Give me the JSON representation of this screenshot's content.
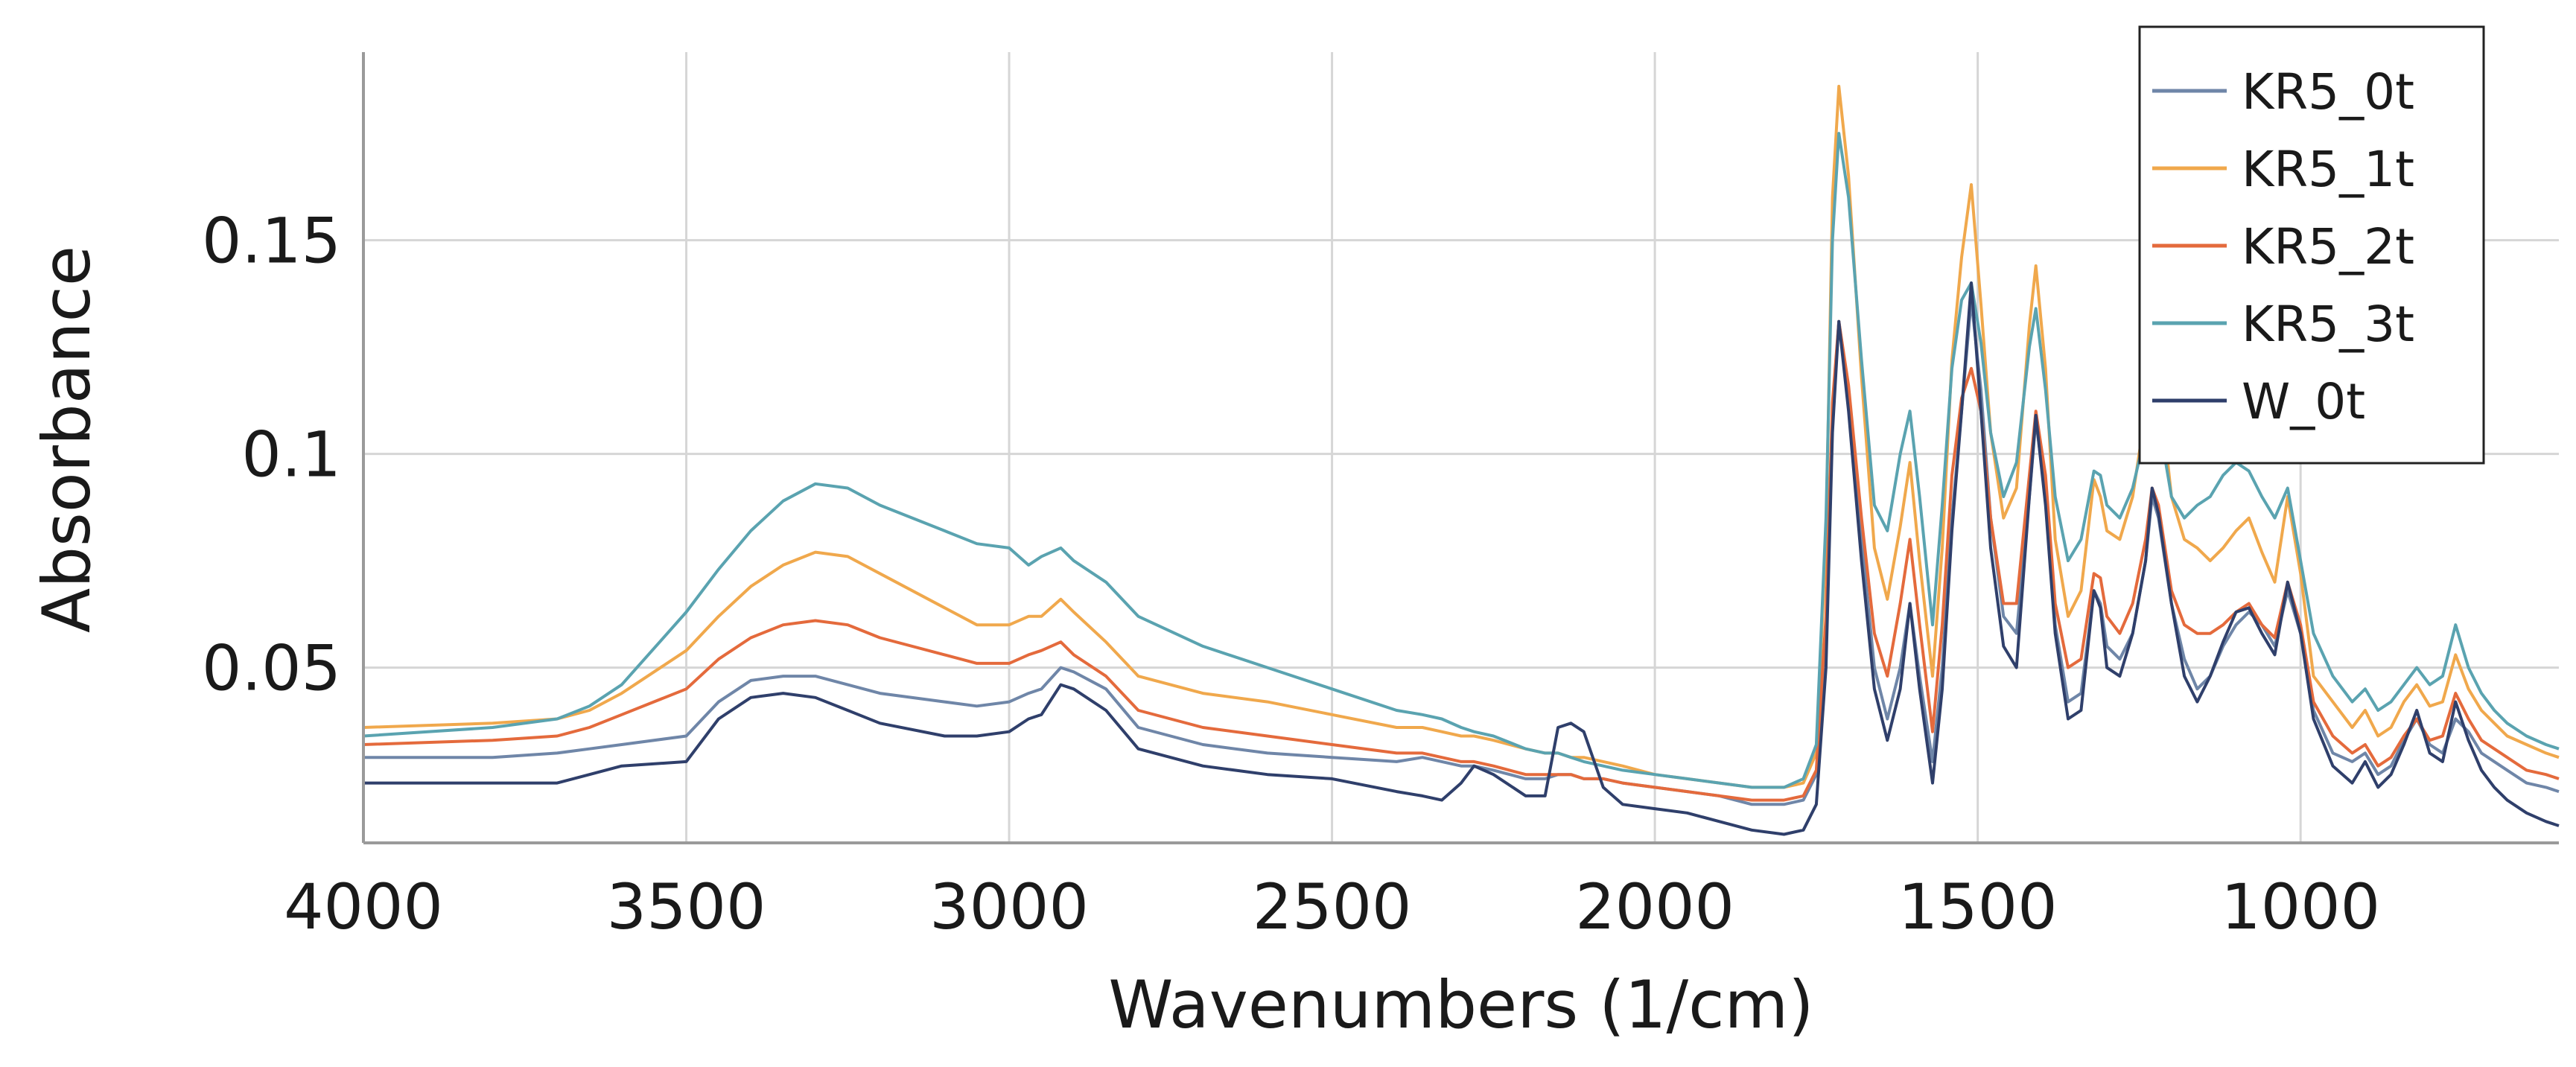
{
  "chart_data": {
    "type": "line",
    "xlabel": "Wavenumbers (1/cm)",
    "ylabel": "Absorbance",
    "xlim": [
      4000,
      600
    ],
    "ylim": [
      0.009,
      0.194
    ],
    "x_reversed": true,
    "grid": true,
    "legend_position": "top-right",
    "x_ticks": [
      {
        "value": 4000,
        "label": "4000"
      },
      {
        "value": 3500,
        "label": "3500"
      },
      {
        "value": 3000,
        "label": "3000"
      },
      {
        "value": 2500,
        "label": "2500"
      },
      {
        "value": 2000,
        "label": "2000"
      },
      {
        "value": 1500,
        "label": "1500"
      },
      {
        "value": 1000,
        "label": "1000"
      }
    ],
    "y_ticks": [
      {
        "value": 0.05,
        "label": "0.05"
      },
      {
        "value": 0.1,
        "label": "0.1"
      },
      {
        "value": 0.15,
        "label": "0.15"
      }
    ],
    "x": [
      4000,
      3800,
      3700,
      3650,
      3600,
      3500,
      3450,
      3400,
      3350,
      3300,
      3250,
      3200,
      3100,
      3050,
      3000,
      2970,
      2950,
      2920,
      2900,
      2850,
      2800,
      2700,
      2600,
      2500,
      2400,
      2360,
      2330,
      2300,
      2280,
      2250,
      2200,
      2170,
      2150,
      2130,
      2110,
      2080,
      2050,
      2000,
      1950,
      1900,
      1850,
      1800,
      1770,
      1750,
      1735,
      1725,
      1715,
      1700,
      1680,
      1660,
      1640,
      1620,
      1605,
      1590,
      1570,
      1555,
      1540,
      1525,
      1510,
      1495,
      1480,
      1460,
      1440,
      1420,
      1410,
      1395,
      1380,
      1360,
      1340,
      1320,
      1310,
      1300,
      1280,
      1260,
      1240,
      1230,
      1220,
      1200,
      1180,
      1160,
      1140,
      1120,
      1100,
      1080,
      1060,
      1040,
      1020,
      1000,
      980,
      950,
      920,
      900,
      880,
      860,
      840,
      820,
      800,
      780,
      760,
      740,
      720,
      700,
      680,
      650,
      620,
      600
    ],
    "series": [
      {
        "name": "KR5_0t",
        "color": "#6f86a8",
        "values": [
          0.029,
          0.029,
          0.03,
          0.031,
          0.032,
          0.034,
          0.042,
          0.047,
          0.048,
          0.048,
          0.046,
          0.044,
          0.042,
          0.041,
          0.042,
          0.044,
          0.045,
          0.05,
          0.049,
          0.045,
          0.036,
          0.032,
          0.03,
          0.029,
          0.028,
          0.029,
          0.028,
          0.027,
          0.027,
          0.026,
          0.024,
          0.024,
          0.025,
          0.025,
          0.024,
          0.024,
          0.023,
          0.022,
          0.021,
          0.02,
          0.018,
          0.018,
          0.019,
          0.025,
          0.06,
          0.11,
          0.131,
          0.115,
          0.08,
          0.05,
          0.038,
          0.05,
          0.065,
          0.048,
          0.028,
          0.05,
          0.085,
          0.11,
          0.136,
          0.115,
          0.085,
          0.062,
          0.058,
          0.09,
          0.108,
          0.09,
          0.06,
          0.042,
          0.044,
          0.068,
          0.065,
          0.055,
          0.052,
          0.058,
          0.075,
          0.09,
          0.085,
          0.065,
          0.052,
          0.045,
          0.048,
          0.055,
          0.06,
          0.063,
          0.06,
          0.055,
          0.068,
          0.058,
          0.04,
          0.03,
          0.028,
          0.03,
          0.025,
          0.027,
          0.033,
          0.038,
          0.032,
          0.03,
          0.038,
          0.035,
          0.03,
          0.028,
          0.026,
          0.023,
          0.022,
          0.021
        ]
      },
      {
        "name": "KR5_1t",
        "color": "#f0a84c",
        "values": [
          0.036,
          0.037,
          0.038,
          0.04,
          0.044,
          0.054,
          0.062,
          0.069,
          0.074,
          0.077,
          0.076,
          0.072,
          0.064,
          0.06,
          0.06,
          0.062,
          0.062,
          0.066,
          0.063,
          0.056,
          0.048,
          0.044,
          0.042,
          0.039,
          0.036,
          0.036,
          0.035,
          0.034,
          0.034,
          0.033,
          0.031,
          0.03,
          0.03,
          0.029,
          0.029,
          0.028,
          0.027,
          0.025,
          0.024,
          0.023,
          0.022,
          0.022,
          0.023,
          0.03,
          0.08,
          0.16,
          0.186,
          0.165,
          0.118,
          0.078,
          0.066,
          0.083,
          0.098,
          0.075,
          0.048,
          0.078,
          0.122,
          0.146,
          0.163,
          0.135,
          0.105,
          0.085,
          0.092,
          0.13,
          0.144,
          0.12,
          0.08,
          0.062,
          0.068,
          0.094,
          0.09,
          0.082,
          0.08,
          0.09,
          0.11,
          0.124,
          0.118,
          0.09,
          0.08,
          0.078,
          0.075,
          0.078,
          0.082,
          0.085,
          0.077,
          0.07,
          0.09,
          0.072,
          0.048,
          0.042,
          0.036,
          0.04,
          0.034,
          0.036,
          0.042,
          0.046,
          0.041,
          0.042,
          0.053,
          0.045,
          0.04,
          0.037,
          0.034,
          0.032,
          0.03,
          0.029
        ]
      },
      {
        "name": "KR5_2t",
        "color": "#e46a3c",
        "values": [
          0.032,
          0.033,
          0.034,
          0.036,
          0.039,
          0.045,
          0.052,
          0.057,
          0.06,
          0.061,
          0.06,
          0.057,
          0.053,
          0.051,
          0.051,
          0.053,
          0.054,
          0.056,
          0.053,
          0.048,
          0.04,
          0.036,
          0.034,
          0.032,
          0.03,
          0.03,
          0.029,
          0.028,
          0.028,
          0.027,
          0.025,
          0.025,
          0.025,
          0.025,
          0.024,
          0.024,
          0.023,
          0.022,
          0.021,
          0.02,
          0.019,
          0.019,
          0.02,
          0.026,
          0.062,
          0.112,
          0.131,
          0.116,
          0.085,
          0.058,
          0.048,
          0.065,
          0.08,
          0.06,
          0.035,
          0.06,
          0.095,
          0.113,
          0.12,
          0.11,
          0.085,
          0.065,
          0.065,
          0.095,
          0.11,
          0.095,
          0.065,
          0.05,
          0.052,
          0.072,
          0.071,
          0.062,
          0.058,
          0.065,
          0.08,
          0.092,
          0.088,
          0.068,
          0.06,
          0.058,
          0.058,
          0.06,
          0.063,
          0.065,
          0.06,
          0.057,
          0.07,
          0.06,
          0.042,
          0.034,
          0.03,
          0.032,
          0.027,
          0.029,
          0.034,
          0.038,
          0.033,
          0.034,
          0.044,
          0.038,
          0.033,
          0.031,
          0.029,
          0.026,
          0.025,
          0.024
        ]
      },
      {
        "name": "KR5_3t",
        "color": "#5aa3b0",
        "values": [
          0.034,
          0.036,
          0.038,
          0.041,
          0.046,
          0.063,
          0.073,
          0.082,
          0.089,
          0.093,
          0.092,
          0.088,
          0.082,
          0.079,
          0.078,
          0.074,
          0.076,
          0.078,
          0.075,
          0.07,
          0.062,
          0.055,
          0.05,
          0.045,
          0.04,
          0.039,
          0.038,
          0.036,
          0.035,
          0.034,
          0.031,
          0.03,
          0.03,
          0.029,
          0.028,
          0.027,
          0.026,
          0.025,
          0.024,
          0.023,
          0.022,
          0.022,
          0.024,
          0.032,
          0.085,
          0.15,
          0.175,
          0.16,
          0.122,
          0.088,
          0.082,
          0.1,
          0.11,
          0.09,
          0.06,
          0.088,
          0.12,
          0.136,
          0.14,
          0.126,
          0.105,
          0.09,
          0.098,
          0.125,
          0.134,
          0.115,
          0.09,
          0.075,
          0.08,
          0.096,
          0.095,
          0.088,
          0.085,
          0.092,
          0.105,
          0.113,
          0.108,
          0.09,
          0.085,
          0.088,
          0.09,
          0.095,
          0.098,
          0.096,
          0.09,
          0.085,
          0.092,
          0.075,
          0.058,
          0.048,
          0.042,
          0.045,
          0.04,
          0.042,
          0.046,
          0.05,
          0.046,
          0.048,
          0.06,
          0.05,
          0.044,
          0.04,
          0.037,
          0.034,
          0.032,
          0.031
        ]
      },
      {
        "name": "W_0t",
        "color": "#2f3f6b",
        "values": [
          0.023,
          0.023,
          0.023,
          0.025,
          0.027,
          0.028,
          0.038,
          0.043,
          0.044,
          0.043,
          0.04,
          0.037,
          0.034,
          0.034,
          0.035,
          0.038,
          0.039,
          0.046,
          0.045,
          0.04,
          0.031,
          0.027,
          0.025,
          0.024,
          0.021,
          0.02,
          0.019,
          0.023,
          0.027,
          0.025,
          0.02,
          0.02,
          0.036,
          0.037,
          0.035,
          0.022,
          0.018,
          0.017,
          0.016,
          0.014,
          0.012,
          0.011,
          0.012,
          0.018,
          0.05,
          0.105,
          0.131,
          0.11,
          0.075,
          0.045,
          0.033,
          0.045,
          0.065,
          0.045,
          0.023,
          0.045,
          0.082,
          0.11,
          0.14,
          0.11,
          0.078,
          0.055,
          0.05,
          0.09,
          0.109,
          0.088,
          0.058,
          0.038,
          0.04,
          0.068,
          0.064,
          0.05,
          0.048,
          0.058,
          0.075,
          0.092,
          0.086,
          0.065,
          0.048,
          0.042,
          0.048,
          0.056,
          0.063,
          0.064,
          0.058,
          0.053,
          0.07,
          0.058,
          0.038,
          0.027,
          0.023,
          0.028,
          0.022,
          0.025,
          0.032,
          0.04,
          0.03,
          0.028,
          0.042,
          0.033,
          0.026,
          0.022,
          0.019,
          0.016,
          0.014,
          0.013
        ]
      }
    ]
  }
}
